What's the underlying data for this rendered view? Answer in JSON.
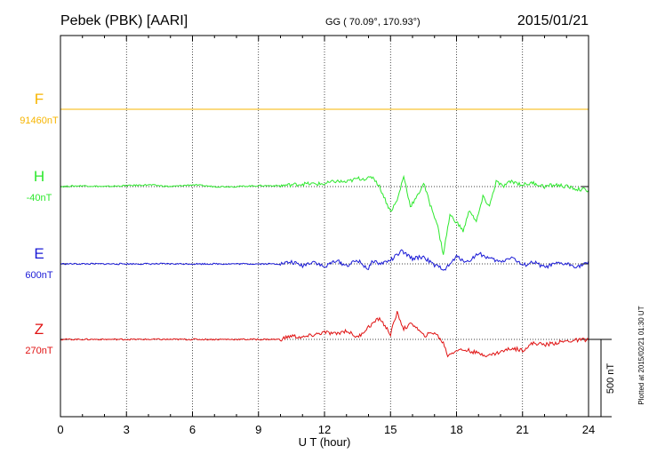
{
  "header": {
    "station": "Pebek (PBK)  [AARI]",
    "coords": "GG ( 70.09°, 170.93°)",
    "date": "2015/01/21"
  },
  "footer": {
    "plotted": "Plotted at 2015/02/21 01:30 UT"
  },
  "chart_data": {
    "type": "line",
    "title": "Pebek (PBK)  [AARI]",
    "xlabel": "U T (hour)",
    "ylabel": "",
    "xlim": [
      0,
      24
    ],
    "xticks": [
      0,
      3,
      6,
      9,
      12,
      15,
      18,
      21,
      24
    ],
    "grid": true,
    "scale_bar": {
      "label": "500 nT",
      "value": 500
    },
    "units_per_offset": "nT",
    "series": [
      {
        "name": "F",
        "baseline_label": "91460nT",
        "color": "#f7b500",
        "x": [
          0,
          24
        ],
        "y": [
          0,
          0
        ]
      },
      {
        "name": "H",
        "baseline_label": "-40nT",
        "color": "#2ee82e",
        "x": [
          0,
          1,
          2,
          3,
          4,
          5,
          6,
          7,
          8,
          9,
          10,
          11,
          12,
          12.5,
          13,
          13.5,
          14,
          14.2,
          14.5,
          14.8,
          15,
          15.3,
          15.6,
          15.9,
          16.2,
          16.5,
          16.8,
          17.1,
          17.4,
          17.7,
          18,
          18.3,
          18.6,
          18.9,
          19.2,
          19.5,
          19.8,
          20.1,
          20.5,
          21,
          21.5,
          22,
          22.5,
          23,
          23.5,
          24
        ],
        "y": [
          0,
          5,
          0,
          5,
          10,
          0,
          10,
          0,
          0,
          5,
          5,
          15,
          15,
          30,
          25,
          45,
          45,
          55,
          0,
          -85,
          -140,
          -80,
          60,
          -110,
          -60,
          20,
          -100,
          -200,
          -380,
          -160,
          -200,
          -250,
          -130,
          -200,
          -60,
          -110,
          30,
          0,
          30,
          10,
          20,
          0,
          10,
          0,
          -15,
          -20
        ]
      },
      {
        "name": "E",
        "baseline_label": "600nT",
        "color": "#1a1ad6",
        "x": [
          0,
          1,
          2,
          3,
          4,
          5,
          6,
          7,
          8,
          9,
          10,
          10.5,
          11,
          11.5,
          12,
          12.5,
          13,
          13.5,
          14,
          14.2,
          14.5,
          15,
          15.5,
          16,
          16.5,
          17,
          17.5,
          18,
          18.5,
          19,
          19.5,
          20,
          20.5,
          21,
          21.5,
          22,
          22.5,
          23,
          23.5,
          24
        ],
        "y": [
          0,
          0,
          0,
          0,
          0,
          0,
          0,
          0,
          0,
          0,
          0,
          10,
          -10,
          15,
          -20,
          20,
          -10,
          20,
          -30,
          20,
          0,
          20,
          70,
          30,
          40,
          -10,
          -30,
          40,
          10,
          60,
          30,
          10,
          40,
          -10,
          10,
          -20,
          0,
          0,
          -15,
          5
        ]
      },
      {
        "name": "Z",
        "baseline_label": "270nT",
        "color": "#e01212",
        "x": [
          0,
          1,
          2,
          3,
          4,
          5,
          6,
          7,
          8,
          9,
          10,
          10.5,
          11,
          11.5,
          12,
          12.5,
          13,
          13.5,
          14,
          14.5,
          15,
          15.3,
          15.6,
          16,
          16.5,
          17,
          17.4,
          17.6,
          18,
          18.5,
          19,
          19.5,
          20,
          20.5,
          21,
          21.5,
          22,
          22.5,
          23,
          23.5,
          24
        ],
        "y": [
          0,
          0,
          0,
          0,
          0,
          0,
          0,
          0,
          0,
          0,
          0,
          20,
          10,
          25,
          40,
          30,
          50,
          10,
          70,
          120,
          30,
          150,
          60,
          90,
          20,
          40,
          -20,
          -90,
          -60,
          -60,
          -80,
          -90,
          -70,
          -50,
          -60,
          -20,
          -30,
          -20,
          -10,
          -5,
          0
        ]
      }
    ]
  },
  "colors": {
    "axis": "#000000",
    "grid": "#000000"
  }
}
